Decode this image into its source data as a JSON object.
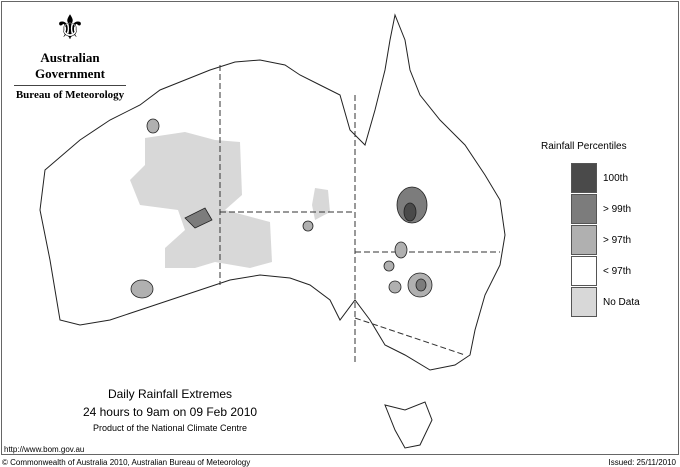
{
  "logo": {
    "line1": "Australian Government",
    "line2": "Bureau of Meteorology"
  },
  "legend": {
    "title": "Rainfall Percentiles",
    "items": [
      {
        "label": "100th",
        "color": "#4a4a4a"
      },
      {
        "label": "> 99th",
        "color": "#7c7c7c"
      },
      {
        "label": "> 97th",
        "color": "#b0b0b0"
      },
      {
        "label": "< 97th",
        "color": "#ffffff"
      },
      {
        "label": "No Data",
        "color": "#d8d8d8"
      }
    ]
  },
  "title": {
    "main": "Daily Rainfall Extremes",
    "period": "24 hours to 9am on 09 Feb 2010",
    "product": "Product of the National Climate Centre"
  },
  "footer": {
    "url": "http://www.bom.gov.au",
    "copyright": "© Commonwealth of Australia 2010, Australian Bureau of Meteorology",
    "issued": "Issued: 25/11/2010"
  }
}
